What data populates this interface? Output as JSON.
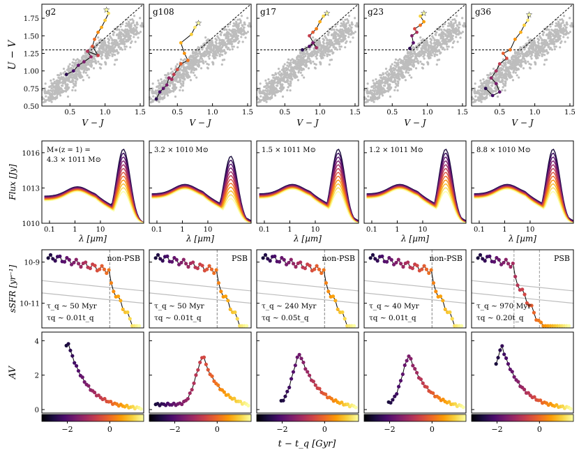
{
  "figure": {
    "galaxies": [
      "g2",
      "g108",
      "g17",
      "g23",
      "g36"
    ],
    "colors": {
      "cloud": "#bdbdbd",
      "frame": "#000000",
      "guide": "#999999"
    },
    "colormap": [
      "#000004",
      "#1b0c41",
      "#4a0c6b",
      "#781c6d",
      "#a52c60",
      "#cf4446",
      "#ed6925",
      "#fb9b06",
      "#f7d13d",
      "#fcffa4"
    ]
  },
  "chart_data": [
    {
      "type": "scatter",
      "panel": "UVJ color-color diagram",
      "xlabel": "V − J",
      "ylabel": "U − V",
      "xlim": [
        0.1,
        1.55
      ],
      "ylim": [
        0.5,
        1.95
      ],
      "xticks": [
        "0.5",
        "1.0",
        "1.5"
      ],
      "yticks": [
        "0.50",
        "0.75",
        "1.00",
        "1.25",
        "1.50",
        "1.75"
      ],
      "quiescent_box": {
        "u_min": 1.3,
        "slope": 0.88,
        "intercept": 0.59,
        "vj_max": 1.6
      },
      "series": [
        {
          "name": "g2",
          "points": [
            [
              0.45,
              0.95
            ],
            [
              0.55,
              1.0
            ],
            [
              0.62,
              1.08
            ],
            [
              0.7,
              1.13
            ],
            [
              0.8,
              1.2
            ],
            [
              0.75,
              1.28
            ],
            [
              0.9,
              1.22
            ],
            [
              0.82,
              1.35
            ],
            [
              0.85,
              1.45
            ],
            [
              0.9,
              1.55
            ],
            [
              0.95,
              1.62
            ],
            [
              1.0,
              1.72
            ],
            [
              1.05,
              1.82
            ],
            [
              1.02,
              1.87
            ]
          ]
        },
        {
          "name": "g108",
          "points": [
            [
              0.2,
              0.6
            ],
            [
              0.25,
              0.7
            ],
            [
              0.3,
              0.75
            ],
            [
              0.35,
              0.8
            ],
            [
              0.38,
              0.9
            ],
            [
              0.42,
              0.88
            ],
            [
              0.45,
              0.95
            ],
            [
              0.5,
              1.02
            ],
            [
              0.55,
              1.1
            ],
            [
              0.65,
              1.15
            ],
            [
              0.6,
              1.25
            ],
            [
              0.55,
              1.4
            ],
            [
              0.7,
              1.52
            ],
            [
              0.75,
              1.62
            ],
            [
              0.8,
              1.68
            ]
          ]
        },
        {
          "name": "g17",
          "points": [
            [
              0.75,
              1.3
            ],
            [
              0.85,
              1.35
            ],
            [
              0.9,
              1.4
            ],
            [
              0.95,
              1.33
            ],
            [
              0.85,
              1.5
            ],
            [
              0.9,
              1.55
            ],
            [
              0.95,
              1.6
            ],
            [
              1.0,
              1.7
            ],
            [
              1.05,
              1.78
            ],
            [
              1.1,
              1.82
            ]
          ]
        },
        {
          "name": "g23",
          "points": [
            [
              0.75,
              1.32
            ],
            [
              0.8,
              1.4
            ],
            [
              0.78,
              1.5
            ],
            [
              0.85,
              1.55
            ],
            [
              0.82,
              1.6
            ],
            [
              0.9,
              1.65
            ],
            [
              0.95,
              1.7
            ],
            [
              0.9,
              1.78
            ],
            [
              0.95,
              1.82
            ]
          ]
        },
        {
          "name": "g36",
          "points": [
            [
              0.3,
              0.75
            ],
            [
              0.4,
              0.65
            ],
            [
              0.5,
              0.7
            ],
            [
              0.45,
              0.82
            ],
            [
              0.38,
              0.9
            ],
            [
              0.45,
              1.0
            ],
            [
              0.5,
              1.1
            ],
            [
              0.6,
              1.18
            ],
            [
              0.55,
              1.25
            ],
            [
              0.65,
              1.3
            ],
            [
              0.72,
              1.45
            ],
            [
              0.8,
              1.55
            ],
            [
              0.85,
              1.65
            ],
            [
              0.9,
              1.72
            ],
            [
              0.92,
              1.8
            ]
          ]
        }
      ]
    },
    {
      "type": "line",
      "panel": "Spectral energy distributions",
      "xlabel": "λ [µm]",
      "ylabel": "Flux [Jy]",
      "xscale": "log",
      "yscale": "log",
      "xticks": [
        "0.1",
        "1",
        "10"
      ],
      "yticks": [
        "10^10",
        "10^13",
        "10^16"
      ],
      "labels": [
        [
          "M∗(z = 1) =",
          "4.3 × 10^11 M⊙"
        ],
        [
          "3.2 × 10^10 M⊙"
        ],
        [
          "1.5 × 10^11 M⊙"
        ],
        [
          "1.2 × 10^11 M⊙"
        ],
        [
          "8.8 × 10^10 M⊙"
        ]
      ]
    },
    {
      "type": "scatter",
      "panel": "Specific star formation rate history",
      "xlabel": "t − t_q [Gyr]",
      "ylabel": "sSFR [yr⁻¹]",
      "yscale": "log",
      "xlim": [
        -3.2,
        1.6
      ],
      "yticks": [
        "10^-9",
        "10^-11"
      ],
      "panels": [
        {
          "name": "g2",
          "class_label": "non-PSB",
          "tau_abs": "τ_q ∼ 50 Myr",
          "tau_rel": "τ_q ∼ 0.01t_q"
        },
        {
          "name": "g108",
          "class_label": "PSB",
          "tau_abs": "τ_q ∼ 50 Myr",
          "tau_rel": "τ_q ∼ 0.01t_q"
        },
        {
          "name": "g17",
          "class_label": "non-PSB",
          "tau_abs": "τ_q ∼ 240 Myr",
          "tau_rel": "τ_q ∼ 0.05t_q"
        },
        {
          "name": "g23",
          "class_label": "non-PSB",
          "tau_abs": "τ_q ∼ 40 Myr",
          "tau_rel": "τ_q ∼ 0.01t_q"
        },
        {
          "name": "g36",
          "class_label": "PSB",
          "tau_abs": "τ_q ∼ 970 Myr",
          "tau_rel": "τ_q ∼ 0.20t_q"
        }
      ]
    },
    {
      "type": "scatter",
      "panel": "Dust attenuation history",
      "xlabel": "t − t_q [Gyr]",
      "ylabel": "A_V",
      "xlim": [
        -3.2,
        1.6
      ],
      "ylim": [
        -0.2,
        4.5
      ],
      "yticks": [
        "0",
        "2",
        "4"
      ],
      "xticks": [
        "−2",
        "0"
      ],
      "peaks": [
        {
          "name": "g2",
          "t_peak": -1.9,
          "av_peak": 3.6
        },
        {
          "name": "g108",
          "t_peak": -0.6,
          "av_peak": 2.8
        },
        {
          "name": "g17",
          "t_peak": -1.1,
          "av_peak": 3.0
        },
        {
          "name": "g23",
          "t_peak": -1.0,
          "av_peak": 2.9
        },
        {
          "name": "g36",
          "t_peak": -1.7,
          "av_peak": 3.4
        }
      ]
    }
  ],
  "colorbar": {
    "ticks": [
      "−2",
      "0"
    ],
    "xlabel": "t − t_q [Gyr]"
  }
}
